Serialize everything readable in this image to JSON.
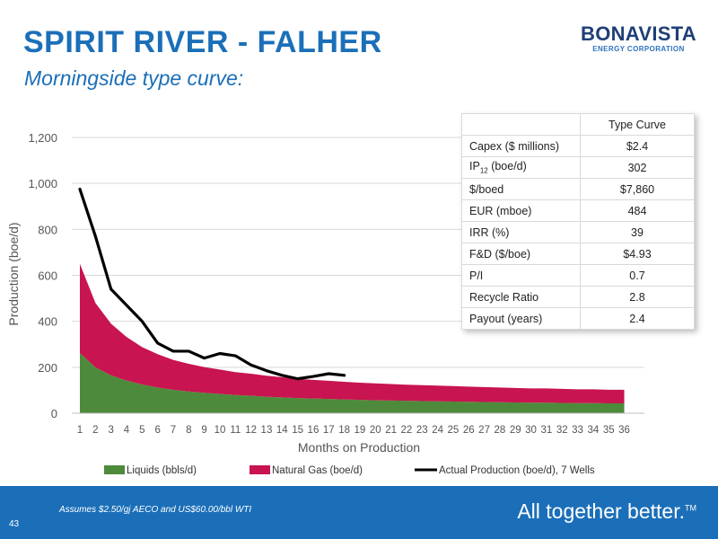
{
  "slide": {
    "title": "SPIRIT RIVER - FALHER",
    "subtitle": "Morningside type curve:",
    "logo_name": "BONAVISTA",
    "logo_sub": "ENERGY CORPORATION",
    "footnote": "Assumes $2.50/gj AECO and US$60.00/bbl WTI",
    "page_number": "43",
    "tagline": "All together better.",
    "tagline_mark": "TM"
  },
  "kpi_table": {
    "header": "Type Curve",
    "rows": [
      {
        "label": "Capex ($ millions)",
        "value": "$2.4"
      },
      {
        "label_main": "IP",
        "label_sub": "12",
        "label_rest": " (boe/d)",
        "value": "302"
      },
      {
        "label": "$/boed",
        "value": "$7,860"
      },
      {
        "label": "EUR (mboe)",
        "value": "484"
      },
      {
        "label": "IRR (%)",
        "value": "39"
      },
      {
        "label": "F&D ($/boe)",
        "value": "$4.93"
      },
      {
        "label": "P/I",
        "value": "0.7"
      },
      {
        "label": "Recycle Ratio",
        "value": "2.8"
      },
      {
        "label": "Payout (years)",
        "value": "2.4"
      }
    ]
  },
  "colors": {
    "liquids": "#4e8a3b",
    "gas": "#c81450",
    "actual": "#000000",
    "brand_blue": "#1b6fb8",
    "logo_navy": "#1f3f78"
  },
  "chart_data": {
    "type": "area",
    "xlabel": "Months on Production",
    "ylabel": "Production (boe/d)",
    "ylim": [
      0,
      1200
    ],
    "yticks": [
      0,
      200,
      400,
      600,
      800,
      1000,
      1200
    ],
    "ytick_labels": [
      "0",
      "200",
      "400",
      "600",
      "800",
      "1,000",
      "1,200"
    ],
    "x": [
      1,
      2,
      3,
      4,
      5,
      6,
      7,
      8,
      9,
      10,
      11,
      12,
      13,
      14,
      15,
      16,
      17,
      18,
      19,
      20,
      21,
      22,
      23,
      24,
      25,
      26,
      27,
      28,
      29,
      30,
      31,
      32,
      33,
      34,
      35,
      36
    ],
    "grid": "horizontal",
    "legend_position": "bottom",
    "series": [
      {
        "name": "Liquids (bbls/d)",
        "style": "stacked-area",
        "values": [
          262,
          200,
          165,
          142,
          125,
          112,
          102,
          95,
          89,
          84,
          79,
          76,
          72,
          69,
          66,
          64,
          62,
          60,
          58,
          56,
          55,
          54,
          53,
          52,
          51,
          50,
          49,
          48,
          47,
          46,
          46,
          45,
          44,
          44,
          43,
          43
        ]
      },
      {
        "name": "Natural Gas (boe/d)",
        "style": "stacked-area",
        "values": [
          388,
          280,
          225,
          190,
          163,
          145,
          130,
          120,
          112,
          106,
          100,
          96,
          91,
          88,
          84,
          81,
          79,
          77,
          75,
          74,
          72,
          70,
          69,
          68,
          67,
          66,
          65,
          64,
          63,
          62,
          62,
          61,
          60,
          60,
          59,
          59
        ]
      },
      {
        "name": "Actual Production (boe/d), 7 Wells",
        "style": "line",
        "x": [
          1,
          2,
          3,
          4,
          5,
          6,
          7,
          8,
          9,
          10,
          11,
          12,
          13,
          14,
          15,
          16,
          17,
          18
        ],
        "values": [
          975,
          770,
          540,
          470,
          400,
          305,
          270,
          270,
          240,
          260,
          250,
          210,
          185,
          165,
          150,
          160,
          172,
          165
        ]
      }
    ]
  }
}
